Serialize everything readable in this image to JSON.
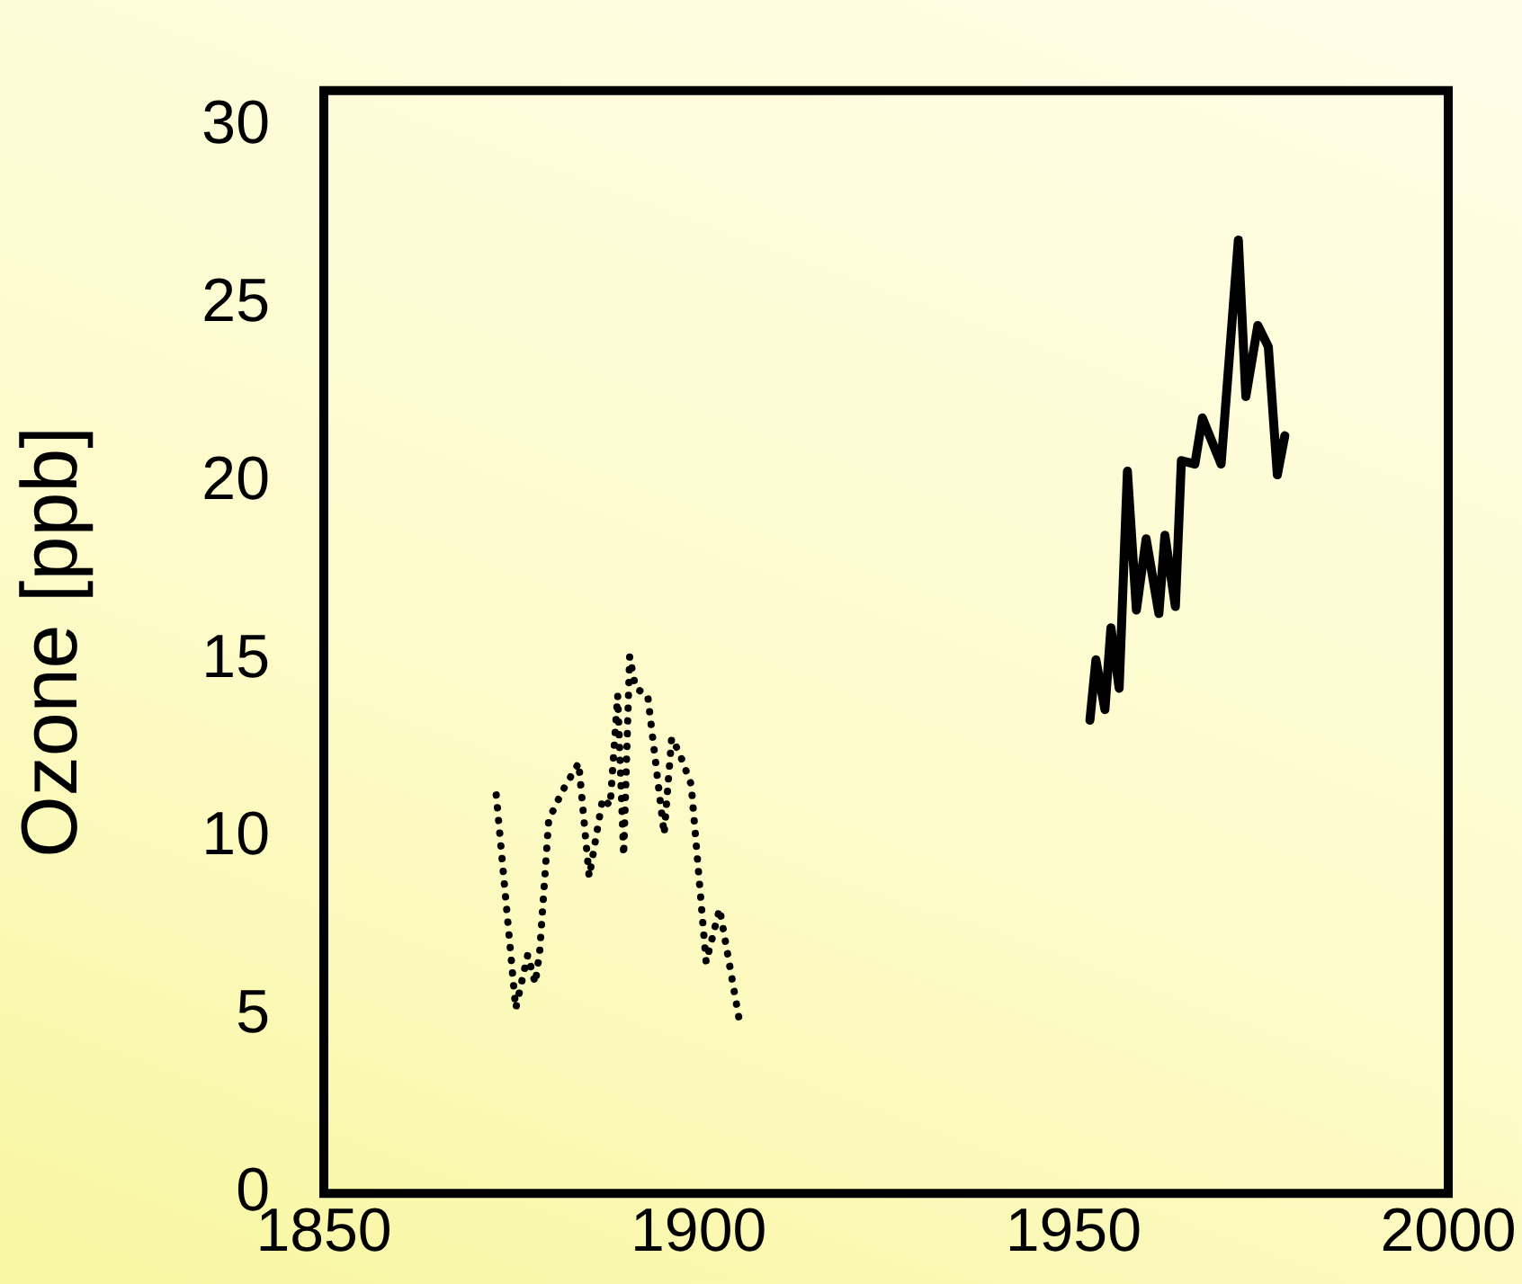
{
  "chart_data": {
    "type": "line",
    "ylabel": "Ozone [ppb]",
    "xlim": [
      1850,
      2000
    ],
    "xticks": [
      1850,
      1900,
      1950,
      2000
    ],
    "ylim": [
      0,
      31
    ],
    "yticks": [
      0,
      5,
      10,
      15,
      20,
      25,
      30
    ],
    "grid": false,
    "legend": false,
    "marker": "none",
    "series": [
      {
        "color": "#000000",
        "line_style": "dotted",
        "x": [
          1873.0,
          1875.6,
          1877.2,
          1878.2,
          1878.8,
          1880.0,
          1881.8,
          1884.0,
          1885.4,
          1887.2,
          1888.2,
          1889.2,
          1890.0,
          1890.8,
          1891.6,
          1893.2,
          1895.4,
          1896.4,
          1897.4,
          1899.0,
          1901.0,
          1902.8,
          1905.4
        ],
        "values": [
          11.2,
          5.2,
          6.7,
          5.9,
          6.8,
          10.5,
          11.3,
          12.1,
          8.9,
          11.1,
          10.9,
          14.0,
          9.5,
          15.1,
          14.2,
          14.0,
          10.1,
          12.8,
          12.4,
          11.5,
          6.5,
          8.0,
          4.9
        ]
      },
      {
        "color": "#000000",
        "line_style": "solid",
        "x": [
          1952.2,
          1953.0,
          1954.2,
          1955.0,
          1956.1,
          1957.2,
          1958.4,
          1959.7,
          1961.4,
          1962.2,
          1963.6,
          1964.4,
          1966.2,
          1967.2,
          1969.7,
          1972.0,
          1973.0,
          1974.6,
          1976.0,
          1977.2,
          1978.2
        ],
        "values": [
          13.3,
          15.0,
          13.6,
          15.9,
          14.2,
          20.3,
          16.4,
          18.4,
          16.3,
          18.5,
          16.5,
          20.6,
          20.5,
          21.8,
          20.5,
          26.8,
          22.4,
          24.4,
          23.8,
          20.2,
          21.3
        ]
      }
    ]
  }
}
